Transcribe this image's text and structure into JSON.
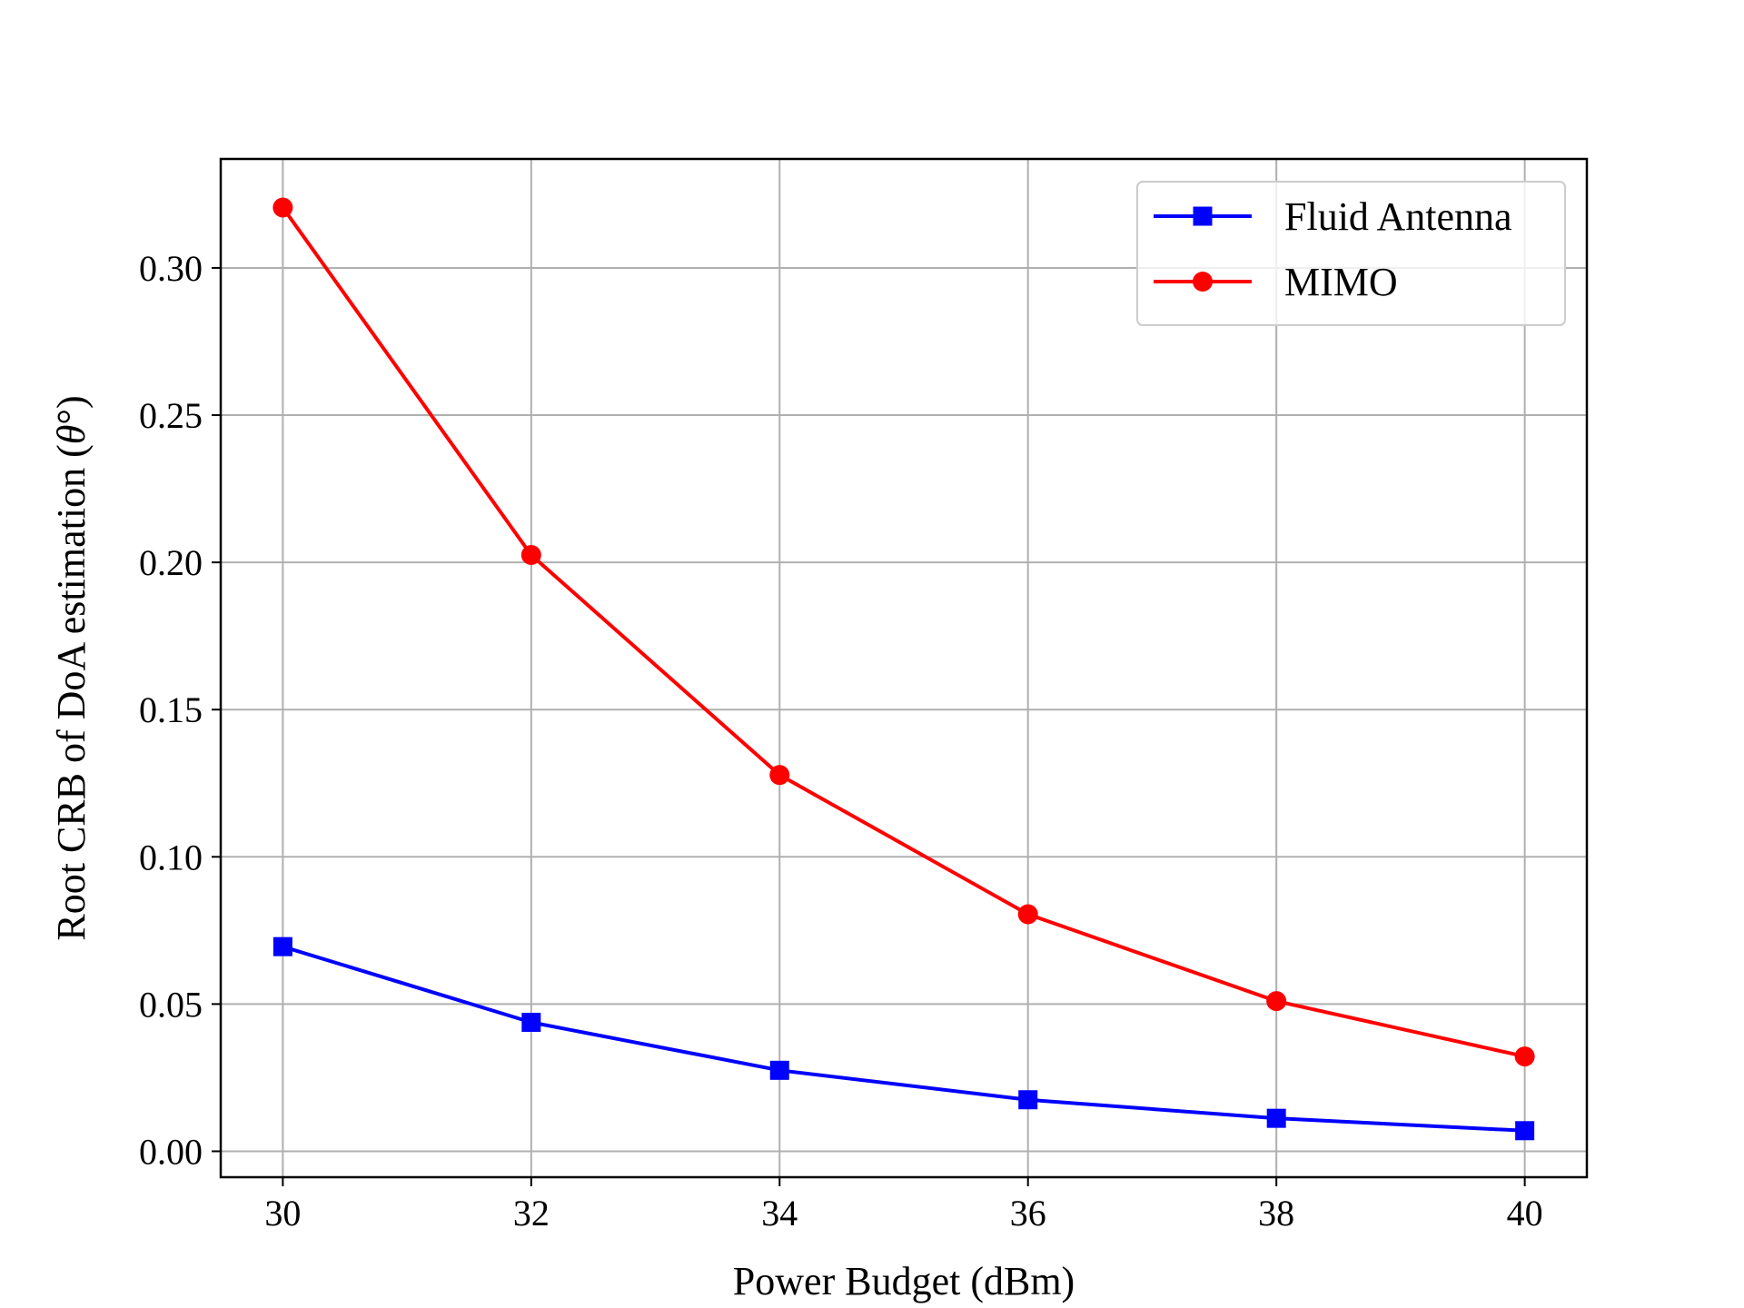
{
  "chart_data": {
    "type": "line",
    "title": "",
    "xlabel": "Power Budget (dBm)",
    "ylabel_prefix": "Root CRB of DoA estimation (",
    "ylabel_symbol": "θ",
    "ylabel_suffix": "°)",
    "x": [
      30,
      32,
      34,
      36,
      38,
      40
    ],
    "xticks": [
      "30",
      "32",
      "34",
      "36",
      "38",
      "40"
    ],
    "yticks": [
      "0.00",
      "0.05",
      "0.10",
      "0.15",
      "0.20",
      "0.25",
      "0.30"
    ],
    "ytick_values": [
      0.0,
      0.05,
      0.1,
      0.15,
      0.2,
      0.25,
      0.3
    ],
    "xlim": [
      29.5,
      40.5
    ],
    "ylim": [
      -0.0088,
      0.337
    ],
    "grid": true,
    "legend_position": "top-right",
    "series": [
      {
        "name": "Fluid Antenna",
        "color": "#0000ff",
        "marker": "square",
        "values": [
          0.0695,
          0.0438,
          0.0275,
          0.0175,
          0.0112,
          0.007
        ]
      },
      {
        "name": "MIMO",
        "color": "#ff0000",
        "marker": "circle",
        "values": [
          0.3205,
          0.2025,
          0.1278,
          0.0805,
          0.051,
          0.0322
        ]
      }
    ]
  }
}
